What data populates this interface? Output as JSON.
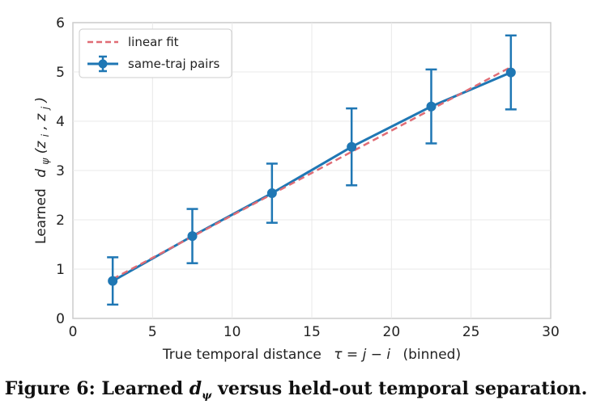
{
  "chart_data": {
    "type": "line",
    "xlabel_prefix": "True temporal distance",
    "xlabel_math": "τ = j − i",
    "xlabel_suffix": "(binned)",
    "ylabel_prefix": "Learned",
    "ylabel_math": "d",
    "ylabel_sub": "ψ",
    "ylabel_args": "(z",
    "ylabel_args_sub1": "i",
    "ylabel_args_mid": ", z",
    "ylabel_args_sub2": "j",
    "ylabel_args_end": ")",
    "xlim": [
      0,
      30
    ],
    "ylim": [
      0,
      6
    ],
    "xticks": [
      0,
      5,
      10,
      15,
      20,
      25,
      30
    ],
    "yticks": [
      0,
      1,
      2,
      3,
      4,
      5,
      6
    ],
    "grid": true,
    "legend_position": "top-left",
    "series": [
      {
        "name": "same-traj pairs",
        "color": "#1f77b4",
        "x": [
          2.5,
          7.5,
          12.5,
          17.5,
          22.5,
          27.5
        ],
        "y": [
          0.76,
          1.67,
          2.54,
          3.48,
          4.3,
          4.99
        ],
        "yerr": [
          0.48,
          0.55,
          0.6,
          0.78,
          0.75,
          0.75
        ]
      },
      {
        "name": "linear fit",
        "color": "#e06c75",
        "dashed": true,
        "x": [
          2.5,
          27.5
        ],
        "y": [
          0.8,
          5.1
        ]
      }
    ]
  },
  "caption": {
    "prefix": "Figure 6: Learned ",
    "math": "d",
    "sub": "ψ",
    "suffix": " versus held-out temporal separation."
  }
}
